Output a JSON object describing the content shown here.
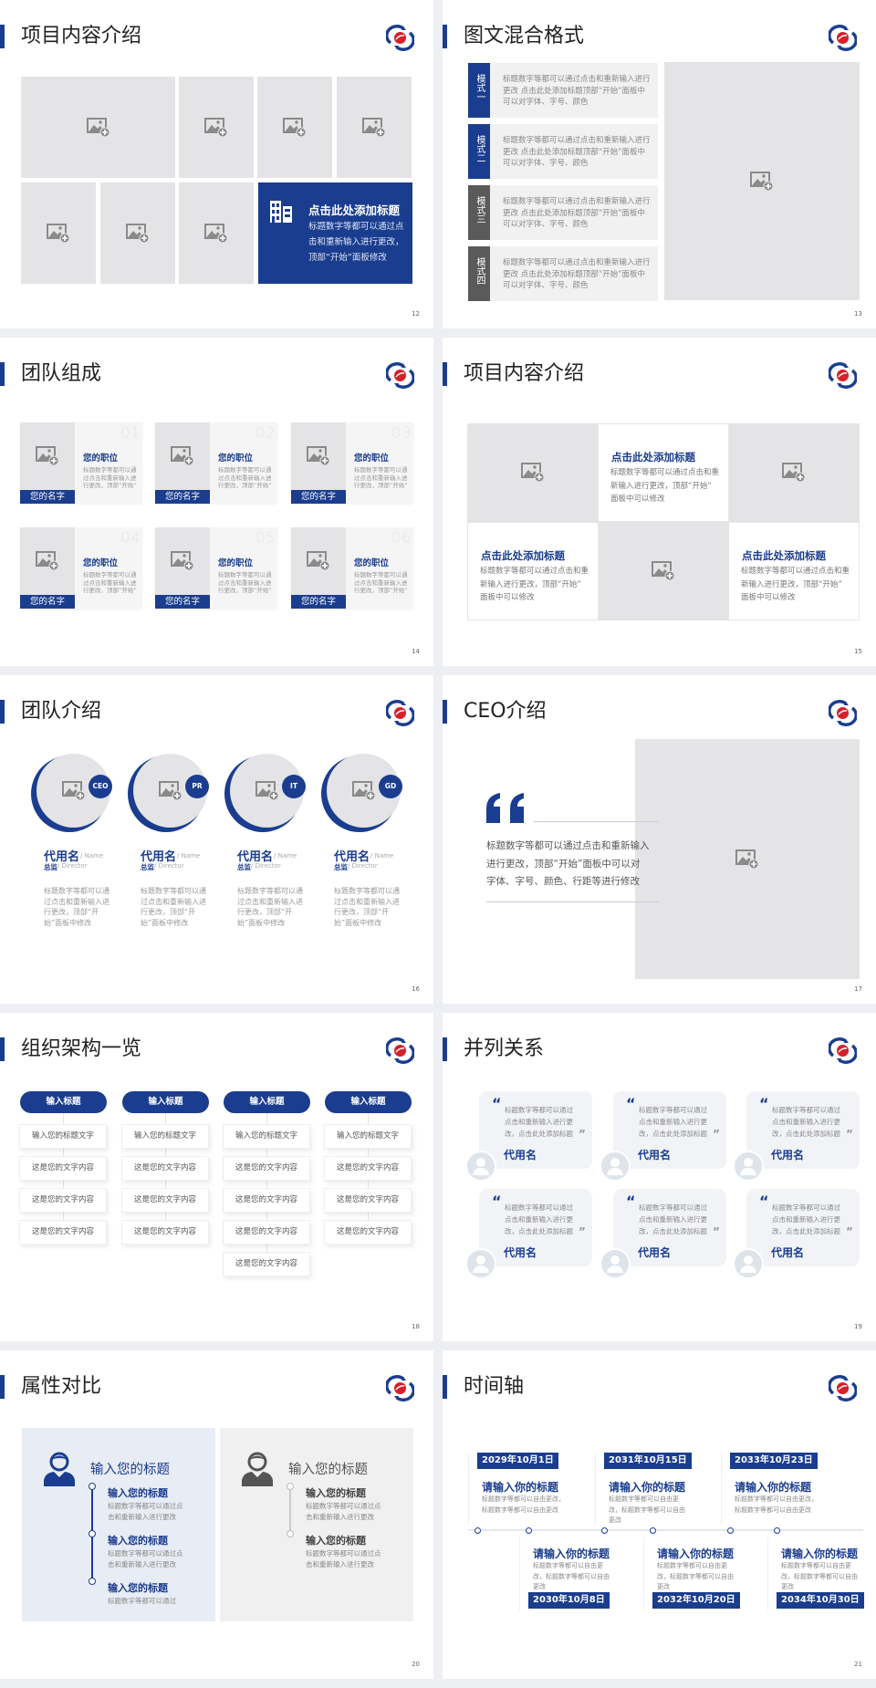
{
  "colors": {
    "accent": "#1a3d8f",
    "gray_tab": "#5a5a5a",
    "placeholder": "#e4e4e6",
    "page_bg": "#eeeff2",
    "logo_red": "#d6202a"
  },
  "slides": [
    {
      "title": "项目内容介绍",
      "page": "12",
      "feature": {
        "icon": "building-icon",
        "title": "点击此处添加标题",
        "lines": [
          "标题数字等都可以通过点",
          "击和重新输入进行更改，",
          "顶部“开始”面板修改"
        ]
      }
    },
    {
      "title": "图文混合格式",
      "page": "13",
      "modes": [
        {
          "label": "模式一",
          "lines": [
            "标题数字等都可以通过点击和重新输入进行",
            "更改 点击此处添加标题顶部“开始”面板中",
            "可以对字体、字号、颜色"
          ]
        },
        {
          "label": "模式二",
          "lines": [
            "标题数字等都可以通过点击和重新输入进行",
            "更改 点击此处添加标题顶部“开始”面板中",
            "可以对字体、字号、颜色"
          ]
        },
        {
          "label": "模式三",
          "lines": [
            "标题数字等都可以通过点击和重新输入进行",
            "更改 点击此处添加标题顶部“开始”面板中",
            "可以对字体、字号、颜色"
          ]
        },
        {
          "label": "模式四",
          "lines": [
            "标题数字等都可以通过点击和重新输入进行",
            "更改 点击此处添加标题顶部“开始”面板中",
            "可以对字体、字号、颜色"
          ]
        }
      ]
    },
    {
      "title": "团队组成",
      "page": "14",
      "members": [
        {
          "num": "01",
          "position": "您的职位",
          "name": "您的名字",
          "lines": [
            "标题数字等都可以通",
            "过点击和重新输入进",
            "行更改，顶部“开始”"
          ]
        },
        {
          "num": "02",
          "position": "您的职位",
          "name": "您的名字",
          "lines": [
            "标题数字等都可以通",
            "过点击和重新输入进",
            "行更改，顶部“开始”"
          ]
        },
        {
          "num": "03",
          "position": "您的职位",
          "name": "您的名字",
          "lines": [
            "标题数字等都可以通",
            "过点击和重新输入进",
            "行更改，顶部“开始”"
          ]
        },
        {
          "num": "04",
          "position": "您的职位",
          "name": "您的名字",
          "lines": [
            "标题数字等都可以通",
            "过点击和重新输入进",
            "行更改，顶部“开始”"
          ]
        },
        {
          "num": "05",
          "position": "您的职位",
          "name": "您的名字",
          "lines": [
            "标题数字等都可以通",
            "过点击和重新输入进",
            "行更改，顶部“开始”"
          ]
        },
        {
          "num": "06",
          "position": "您的职位",
          "name": "您的名字",
          "lines": [
            "标题数字等都可以通",
            "过点击和重新输入进",
            "行更改，顶部“开始”"
          ]
        }
      ]
    },
    {
      "title": "项目内容介绍",
      "page": "15",
      "items": [
        {
          "title": "点击此处添加标题",
          "lines": [
            "标题数字等都可以通过点击和重",
            "新输入进行更改，顶部“开始”",
            "面板中可以修改"
          ]
        },
        {
          "title": "点击此处添加标题",
          "lines": [
            "标题数字等都可以通过点击和重",
            "新输入进行更改，顶部“开始”",
            "面板中可以修改"
          ]
        },
        {
          "title": "点击此处添加标题",
          "lines": [
            "标题数字等都可以通过点击和重",
            "新输入进行更改，顶部“开始”",
            "面板中可以修改"
          ]
        }
      ]
    },
    {
      "title": "团队介绍",
      "page": "16",
      "members": [
        {
          "badge": "CEO",
          "name": "代用名",
          "name_en": "/ Name",
          "role": "总监",
          "role_en": "/  Director",
          "lines": [
            "标题数字等都可以通",
            "过点击和重新输入进",
            "行更改，顶部“开",
            "始”面板中修改"
          ]
        },
        {
          "badge": "PR",
          "name": "代用名",
          "name_en": "/ Name",
          "role": "总监",
          "role_en": "/  Director",
          "lines": [
            "标题数字等都可以通",
            "过点击和重新输入进",
            "行更改，顶部“开",
            "始”面板中修改"
          ]
        },
        {
          "badge": "IT",
          "name": "代用名",
          "name_en": "/ Name",
          "role": "总监",
          "role_en": "/  Director",
          "lines": [
            "标题数字等都可以通",
            "过点击和重新输入进",
            "行更改，顶部“开",
            "始”面板中修改"
          ]
        },
        {
          "badge": "GD",
          "name": "代用名",
          "name_en": "/ Name",
          "role": "总监",
          "role_en": "/  Director",
          "lines": [
            "标题数字等都可以通",
            "过点击和重新输入进",
            "行更改，顶部“开",
            "始”面板中修改"
          ]
        }
      ]
    },
    {
      "title": "CEO介绍",
      "page": "17",
      "quote_lines": [
        "标题数字等都可以通过点击和重新输入",
        "进行更改，顶部“开始”面板中可以对",
        "字体、字号、颜色、行距等进行修改"
      ]
    },
    {
      "title": "组织架构一览",
      "page": "18",
      "columns": [
        {
          "header": "输入标题",
          "items": [
            "输入您的标题文字",
            "这是您的文字内容",
            "这是您的文字内容",
            "这是您的文字内容"
          ]
        },
        {
          "header": "输入标题",
          "items": [
            "输入您的标题文字",
            "这是您的文字内容",
            "这是您的文字内容",
            "这是您的文字内容"
          ]
        },
        {
          "header": "输入标题",
          "items": [
            "输入您的标题文字",
            "这是您的文字内容",
            "这是您的文字内容",
            "这是您的文字内容",
            "这是您的文字内容"
          ]
        },
        {
          "header": "输入标题",
          "items": [
            "输入您的标题文字",
            "这是您的文字内容",
            "这是您的文字内容",
            "这是您的文字内容"
          ]
        }
      ]
    },
    {
      "title": "并列关系",
      "page": "19",
      "cards": [
        {
          "name": "代用名",
          "lines": [
            "标题数字等都可以通过",
            "点击和重新输入进行更",
            "改，点击此处添加标题"
          ]
        },
        {
          "name": "代用名",
          "lines": [
            "标题数字等都可以通过",
            "点击和重新输入进行更",
            "改，点击此处添加标题"
          ]
        },
        {
          "name": "代用名",
          "lines": [
            "标题数字等都可以通过",
            "点击和重新输入进行更",
            "改，点击此处添加标题"
          ]
        },
        {
          "name": "代用名",
          "lines": [
            "标题数字等都可以通过",
            "点击和重新输入进行更",
            "改，点击此处添加标题"
          ]
        },
        {
          "name": "代用名",
          "lines": [
            "标题数字等都可以通过",
            "点击和重新输入进行更",
            "改，点击此处添加标题"
          ]
        },
        {
          "name": "代用名",
          "lines": [
            "标题数字等都可以通过",
            "点击和重新输入进行更",
            "改，点击此处添加标题"
          ]
        }
      ]
    },
    {
      "title": "属性对比",
      "page": "20",
      "left": {
        "heading": "输入您的标题",
        "items": [
          {
            "title": "输入您的标题",
            "lines": [
              "标题数字等都可以通过点",
              "击和重新输入进行更改"
            ]
          },
          {
            "title": "输入您的标题",
            "lines": [
              "标题数字等都可以通过点",
              "击和重新输入进行更改"
            ]
          },
          {
            "title": "输入您的标题",
            "lines": [
              "标题数字等都可以通过"
            ]
          }
        ]
      },
      "right": {
        "heading": "输入您的标题",
        "items": [
          {
            "title": "输入您的标题",
            "lines": [
              "标题数字等都可以通过点",
              "击和重新输入进行更改"
            ]
          },
          {
            "title": "输入您的标题",
            "lines": [
              "标题数字等都可以通过点",
              "击和重新输入进行更改"
            ]
          }
        ]
      }
    },
    {
      "title": "时间轴",
      "page": "21",
      "events": [
        {
          "date": "2029年10月1日",
          "title": "请输入你的标题",
          "lines": [
            "标题数字等都可以自由更改，",
            "标题数字等都可以自由更改"
          ]
        },
        {
          "date": "2030年10月8日",
          "title": "请输入你的标题",
          "lines": [
            "标题数字等都可以自由更",
            "改，标题数字等都可以自由",
            "更改"
          ]
        },
        {
          "date": "2031年10月15日",
          "title": "请输入你的标题",
          "lines": [
            "标题数字等都可以自由更",
            "改，标题数字等都可以自由",
            "更改"
          ]
        },
        {
          "date": "2032年10月20日",
          "title": "请输入你的标题",
          "lines": [
            "标题数字等都可以自由更",
            "改，标题数字等都可以自由",
            "更改"
          ]
        },
        {
          "date": "2033年10月23日",
          "title": "请输入你的标题",
          "lines": [
            "标题数字等都可以自由更改，",
            "标题数字等都可以自由更改"
          ]
        },
        {
          "date": "2034年10月30日",
          "title": "请输入你的标题",
          "lines": [
            "标题数字等都可以自由更",
            "改，标题数字等都可以自由",
            "更改"
          ]
        }
      ]
    }
  ]
}
